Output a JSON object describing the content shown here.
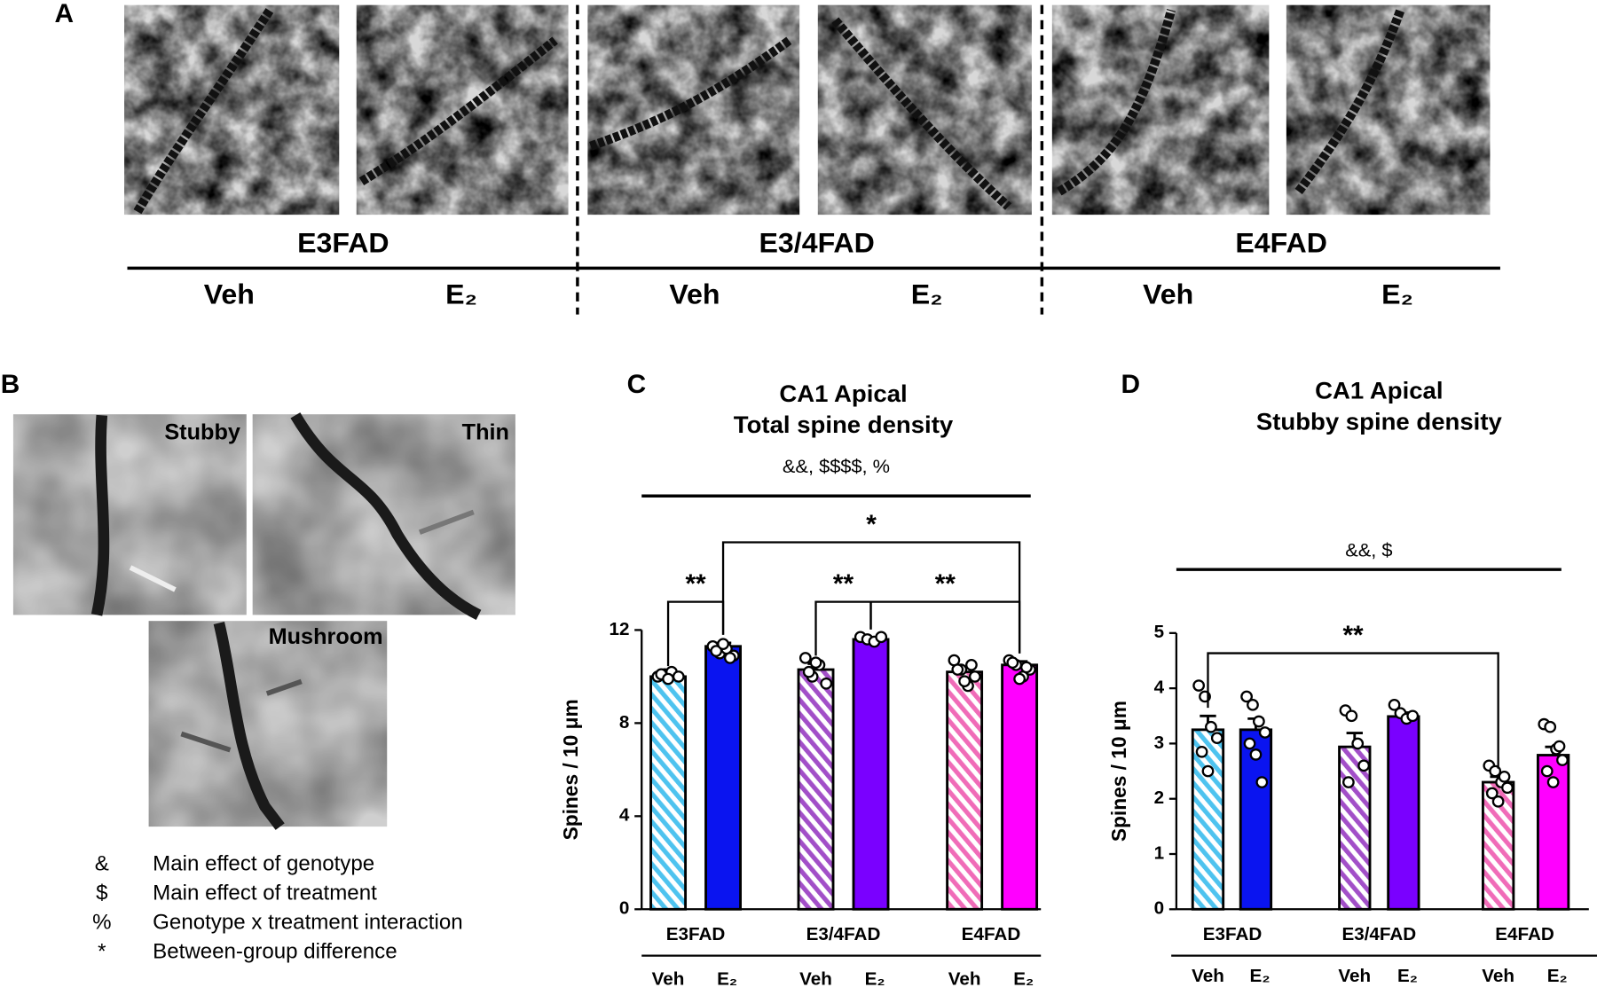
{
  "panel_a": {
    "label": "A",
    "groups": [
      "E3FAD",
      "E3/4FAD",
      "E4FAD"
    ],
    "conditions": [
      "Veh",
      "E₂",
      "Veh",
      "E₂",
      "Veh",
      "E₂"
    ]
  },
  "panel_b": {
    "label": "B",
    "images": [
      "Stubby",
      "Thin",
      "Mushroom"
    ],
    "legend": [
      {
        "symbol": "&",
        "text": "Main effect of genotype"
      },
      {
        "symbol": "$",
        "text": "Main effect of treatment"
      },
      {
        "symbol": "%",
        "text": "Genotype x treatment interaction"
      },
      {
        "symbol": "*",
        "text": "Between-group difference"
      }
    ]
  },
  "chart_data": [
    {
      "type": "bar",
      "panel": "C",
      "title": [
        "CA1 Apical",
        "Total spine density"
      ],
      "stats": "&&, $$$$, %",
      "ylabel": "Spines / 10 μm",
      "groups": [
        "E3FAD",
        "E3/4FAD",
        "E4FAD"
      ],
      "categories": [
        "Veh",
        "E₂",
        "Veh",
        "E₂",
        "Veh",
        "E₂"
      ],
      "values": [
        10.0,
        11.3,
        10.3,
        11.6,
        10.2,
        10.5
      ],
      "errors": [
        0.1,
        0.15,
        0.25,
        0.08,
        0.2,
        0.15
      ],
      "points": [
        [
          10.0,
          10.1,
          10.2,
          10.0,
          10.1,
          9.9
        ],
        [
          11.3,
          11.0,
          11.2,
          10.9,
          11.1,
          11.4,
          10.8
        ],
        [
          10.8,
          10.0,
          10.5,
          9.7,
          10.2,
          10.6
        ],
        [
          11.7,
          11.6,
          11.5,
          11.7
        ],
        [
          10.7,
          10.3,
          9.6,
          10.0,
          10.3,
          9.8,
          10.5
        ],
        [
          10.7,
          10.5,
          10.0,
          10.3,
          10.6,
          9.9,
          10.4
        ]
      ],
      "colors": [
        "#4ec3ef",
        "#0a14f0",
        "#a24fc8",
        "#7a00ff",
        "#f06cb8",
        "#ff00ff"
      ],
      "hatched": [
        true,
        false,
        true,
        false,
        true,
        false
      ],
      "significance": [
        {
          "label": "**",
          "bars": [
            0,
            1
          ]
        },
        {
          "label": "**",
          "bars": [
            2,
            3
          ]
        },
        {
          "label": "**",
          "bars": [
            3,
            5
          ]
        },
        {
          "label": "*",
          "bars": [
            1,
            5
          ]
        }
      ],
      "ylim": [
        0,
        12
      ],
      "yticks": [
        0,
        4,
        8,
        12
      ]
    },
    {
      "type": "bar",
      "panel": "D",
      "title": [
        "CA1 Apical",
        "Stubby spine density"
      ],
      "stats": "&&, $",
      "ylabel": "Spines / 10 μm",
      "groups": [
        "E3FAD",
        "E3/4FAD",
        "E4FAD"
      ],
      "categories": [
        "Veh",
        "E₂",
        "Veh",
        "E₂",
        "Veh",
        "E₂"
      ],
      "values": [
        3.25,
        3.25,
        2.94,
        3.49,
        2.3,
        2.79
      ],
      "errors": [
        0.25,
        0.2,
        0.25,
        0.07,
        0.1,
        0.15
      ],
      "points": [
        [
          4.05,
          3.85,
          3.3,
          3.1,
          2.85,
          2.5
        ],
        [
          3.85,
          3.7,
          3.4,
          3.2,
          3.0,
          2.8,
          2.3
        ],
        [
          3.6,
          3.5,
          3.0,
          2.6,
          2.3
        ],
        [
          3.7,
          3.55,
          3.45,
          3.5
        ],
        [
          2.6,
          2.5,
          2.3,
          2.2,
          2.1,
          1.95,
          2.4
        ],
        [
          3.35,
          3.3,
          2.9,
          2.7,
          2.5,
          2.3,
          2.95
        ]
      ],
      "colors": [
        "#4ec3ef",
        "#0a14f0",
        "#a24fc8",
        "#7a00ff",
        "#f06cb8",
        "#ff00ff"
      ],
      "hatched": [
        true,
        false,
        true,
        false,
        true,
        false
      ],
      "significance": [
        {
          "label": "**",
          "bars": [
            0,
            4
          ]
        }
      ],
      "ylim": [
        0,
        5
      ],
      "yticks": [
        0,
        1,
        2,
        3,
        4,
        5
      ]
    }
  ]
}
